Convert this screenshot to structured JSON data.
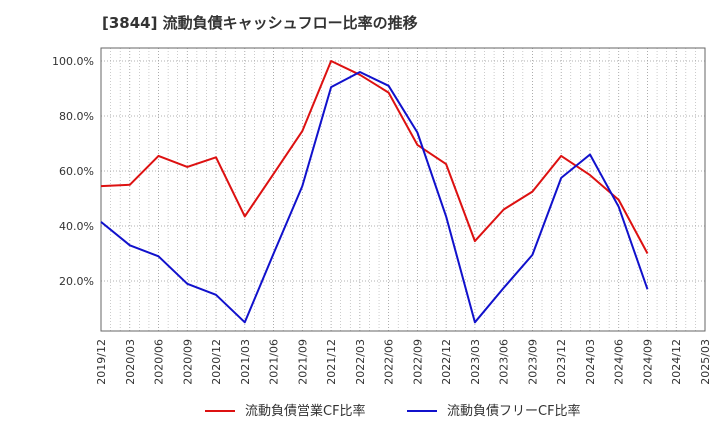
{
  "chart_data": {
    "type": "line",
    "title": "[3844]  流動負債キャッシュフロー比率の推移",
    "xlabel": "",
    "ylabel": "",
    "x": [
      "2019/12",
      "2020/03",
      "2020/06",
      "2020/09",
      "2020/12",
      "2021/03",
      "2021/06",
      "2021/09",
      "2021/12",
      "2022/03",
      "2022/06",
      "2022/09",
      "2022/12",
      "2023/03",
      "2023/06",
      "2023/09",
      "2023/12",
      "2024/03",
      "2024/06",
      "2024/09",
      "2024/12",
      "2025/03"
    ],
    "y_ticks": [
      "20.0%",
      "40.0%",
      "60.0%",
      "80.0%",
      "100.0%"
    ],
    "y_tick_values": [
      20,
      40,
      60,
      80,
      100
    ],
    "ylim": [
      0,
      100
    ],
    "grid": true,
    "legend_position": "bottom",
    "series": [
      {
        "name": "流動負債営業CF比率",
        "color": "#dd1111",
        "values": [
          54.5,
          55.0,
          65.5,
          61.5,
          65.0,
          43.5,
          59.0,
          74.5,
          100.0,
          95.0,
          88.5,
          69.5,
          62.5,
          34.5,
          46.0,
          52.5,
          65.5,
          58.5,
          49.5,
          30.0,
          null,
          null
        ]
      },
      {
        "name": "流動負債フリーCF比率",
        "color": "#1111cc",
        "values": [
          41.5,
          33.0,
          29.0,
          19.0,
          15.0,
          5.0,
          30.0,
          54.5,
          90.5,
          96.0,
          91.0,
          74.0,
          43.5,
          5.0,
          17.5,
          29.5,
          57.5,
          66.0,
          47.0,
          17.0,
          null,
          null
        ]
      }
    ]
  }
}
